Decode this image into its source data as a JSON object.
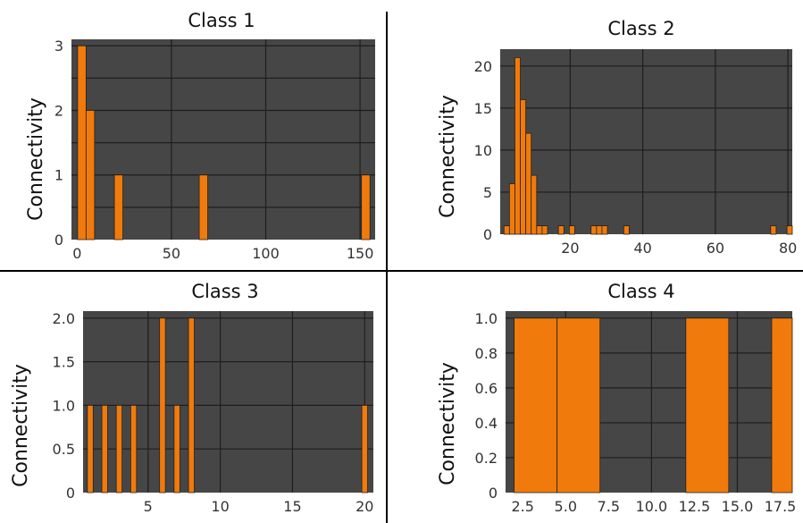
{
  "colors": {
    "background": "#ffffff",
    "plot_background": "#464646",
    "gridline": "#1e1e1e",
    "bar_fill": "#f07a0c",
    "bar_stroke": "#222222",
    "divider": "#000000"
  },
  "chart_data": [
    {
      "type": "bar",
      "title": "Class 1",
      "ylabel": "Connectivity",
      "xlim": [
        -3,
        158
      ],
      "ylim": [
        0,
        3.1
      ],
      "xticks": [
        0,
        50,
        100,
        150
      ],
      "yticks": [
        0,
        1,
        2,
        3
      ],
      "xtick_labels": [
        "0",
        "50",
        "100",
        "150"
      ],
      "ytick_labels": [
        "0",
        "1",
        "2",
        "3"
      ],
      "xgrid": [
        50,
        100,
        150
      ],
      "ygrid": [
        0.5,
        1,
        1.5,
        2,
        2.5,
        3
      ],
      "bin_width": 4.5,
      "bars": [
        {
          "x": 2.5,
          "y": 3
        },
        {
          "x": 7,
          "y": 2
        },
        {
          "x": 22,
          "y": 1
        },
        {
          "x": 67,
          "y": 1
        },
        {
          "x": 153,
          "y": 1
        }
      ],
      "grid": true
    },
    {
      "type": "bar",
      "title": "Class 2",
      "ylabel": "Connectivity",
      "xlim": [
        0.7,
        81.2
      ],
      "ylim": [
        0,
        22
      ],
      "xticks": [
        20,
        40,
        60,
        80
      ],
      "yticks": [
        0,
        5,
        10,
        15,
        20
      ],
      "xtick_labels": [
        "20",
        "40",
        "60",
        "80"
      ],
      "ytick_labels": [
        "0",
        "5",
        "10",
        "15",
        "20"
      ],
      "xgrid": [
        20,
        40,
        60,
        80
      ],
      "ygrid": [
        5,
        10,
        15,
        20
      ],
      "bin_width": 1.5,
      "bars": [
        {
          "x": 2.5,
          "y": 1
        },
        {
          "x": 4,
          "y": 6
        },
        {
          "x": 5.5,
          "y": 21
        },
        {
          "x": 7,
          "y": 16
        },
        {
          "x": 8.5,
          "y": 12
        },
        {
          "x": 10,
          "y": 7
        },
        {
          "x": 11.5,
          "y": 1
        },
        {
          "x": 13,
          "y": 1
        },
        {
          "x": 17.5,
          "y": 1
        },
        {
          "x": 20.5,
          "y": 1
        },
        {
          "x": 26.5,
          "y": 1
        },
        {
          "x": 28,
          "y": 1
        },
        {
          "x": 29.5,
          "y": 1
        },
        {
          "x": 35.5,
          "y": 1
        },
        {
          "x": 76,
          "y": 1
        },
        {
          "x": 80.5,
          "y": 1
        }
      ],
      "grid": true
    },
    {
      "type": "bar",
      "title": "Class 3",
      "ylabel": "Connectivity",
      "xlim": [
        0.5,
        20.6
      ],
      "ylim": [
        0,
        2.08
      ],
      "xticks": [
        5,
        10,
        15,
        20
      ],
      "yticks": [
        0,
        0.5,
        1.0,
        1.5,
        2.0
      ],
      "xtick_labels": [
        "5",
        "10",
        "15",
        "20"
      ],
      "ytick_labels": [
        "0",
        "0.5",
        "1.0",
        "1.5",
        "2.0"
      ],
      "xgrid": [
        5,
        10,
        15,
        20
      ],
      "ygrid": [
        0.5,
        1.0,
        1.5,
        2.0
      ],
      "bin_width": 0.4,
      "bars": [
        {
          "x": 1,
          "y": 1
        },
        {
          "x": 2,
          "y": 1
        },
        {
          "x": 3,
          "y": 1
        },
        {
          "x": 4,
          "y": 1
        },
        {
          "x": 6,
          "y": 2
        },
        {
          "x": 7,
          "y": 1
        },
        {
          "x": 8,
          "y": 2
        },
        {
          "x": 20,
          "y": 1
        }
      ],
      "grid": true
    },
    {
      "type": "bar",
      "title": "Class 4",
      "ylabel": "Connectivity",
      "xlim": [
        1.5,
        18.2
      ],
      "ylim": [
        0,
        1.04
      ],
      "xticks": [
        2.5,
        5.0,
        7.5,
        10.0,
        12.5,
        15.0,
        17.5
      ],
      "yticks": [
        0,
        0.2,
        0.4,
        0.6,
        0.8,
        1.0
      ],
      "xtick_labels": [
        "2.5",
        "5.0",
        "7.5",
        "10.0",
        "12.5",
        "15.0",
        "17.5"
      ],
      "ytick_labels": [
        "0",
        "0.2",
        "0.4",
        "0.6",
        "0.8",
        "1.0"
      ],
      "xgrid": [
        5.0,
        10.0,
        15.0
      ],
      "ygrid": [
        0.2,
        0.4,
        0.6,
        0.8,
        1.0
      ],
      "bin_width": 2.5,
      "bars": [
        {
          "x": 3.25,
          "y": 1
        },
        {
          "x": 5.75,
          "y": 1
        },
        {
          "x": 13.25,
          "y": 1
        },
        {
          "x": 18.25,
          "y": 1
        }
      ],
      "grid": true
    }
  ]
}
